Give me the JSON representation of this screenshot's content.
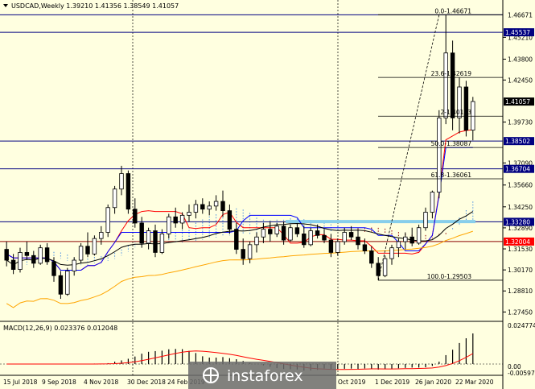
{
  "header": {
    "dropdown_icon": "triangle-down-icon",
    "text": "USDCAD,Weekly  1.39210 1.41356 1.38549 1.41057"
  },
  "macd_label": "MACD(12,26,9) 0.023376 0.012048",
  "watermark": {
    "text": "instaforex",
    "icon": "instaforex-logo-icon"
  },
  "colors": {
    "bull": "#ffffff",
    "bear": "#000000",
    "tenkan": "#ff0000",
    "kijun": "#0000ff",
    "ma_black": "#000000",
    "ma_orange": "#ffa500",
    "level_line": "#000080",
    "badge": "#000080",
    "badge_red": "#ff0000",
    "cloud_blue": "#4a90e2",
    "cloud_red": "#8b0000",
    "macd_signal": "#ff0000",
    "macd_bar": "#000000"
  },
  "chart_data": {
    "type": "candlestick",
    "symbol": "USDCAD",
    "timeframe": "Weekly",
    "ylim": [
      1.27,
      1.47
    ],
    "ohlc_last": {
      "open": 1.3921,
      "high": 1.41356,
      "low": 1.38549,
      "close": 1.41057
    },
    "price_ticks": [
      "1.45210",
      "1.43800",
      "1.42450",
      "1.39730",
      "1.37090",
      "1.35660",
      "1.34250",
      "1.32890",
      "1.31530",
      "1.30170",
      "1.28810",
      "1.27450"
    ],
    "price_badges": [
      {
        "value": 1.45537,
        "label": "1.45537",
        "color": "badge"
      },
      {
        "value": 1.41057,
        "label": "1.41057",
        "color": "bear"
      },
      {
        "value": 1.38502,
        "label": "1.38502",
        "color": "badge"
      },
      {
        "value": 1.36704,
        "label": "1.36704",
        "color": "badge"
      },
      {
        "value": 1.3328,
        "label": "1.33280",
        "color": "badge"
      },
      {
        "value": 1.32004,
        "label": "1.32004",
        "color": "badge_red"
      }
    ],
    "top_price_label": "1.46671",
    "fib_labels": [
      {
        "value": 1.46671,
        "text": "0.0-1.46671"
      },
      {
        "value": 1.42619,
        "text": "23.6-1.42619"
      },
      {
        "value": 1.40113,
        "text": "2-1.40113"
      },
      {
        "value": 1.38087,
        "text": "50.0-1.38087"
      },
      {
        "value": 1.36061,
        "text": "61.8-1.36061"
      },
      {
        "value": 1.29503,
        "text": "100.0-1.29503"
      }
    ],
    "horizontal_levels": [
      1.46671,
      1.45537,
      1.38502,
      1.36704,
      1.3328,
      1.32004
    ],
    "x_labels": [
      "15 Jul 2018",
      "9 Sep 2018",
      "4 Nov 2018",
      "30 Dec 2018",
      "24 Feb 2019",
      "Oct 2019",
      "1 Dec 2019",
      "26 Jan 2020",
      "22 Mar 2020"
    ],
    "candles": [
      [
        1.315,
        1.32,
        1.304,
        1.308
      ],
      [
        1.308,
        1.312,
        1.299,
        1.302
      ],
      [
        1.302,
        1.316,
        1.3,
        1.313
      ],
      [
        1.313,
        1.32,
        1.308,
        1.311
      ],
      [
        1.311,
        1.314,
        1.303,
        1.306
      ],
      [
        1.306,
        1.318,
        1.305,
        1.316
      ],
      [
        1.316,
        1.319,
        1.305,
        1.307
      ],
      [
        1.307,
        1.31,
        1.294,
        1.298
      ],
      [
        1.298,
        1.301,
        1.283,
        1.286
      ],
      [
        1.286,
        1.303,
        1.285,
        1.301
      ],
      [
        1.301,
        1.31,
        1.298,
        1.308
      ],
      [
        1.308,
        1.319,
        1.306,
        1.317
      ],
      [
        1.317,
        1.326,
        1.31,
        1.312
      ],
      [
        1.312,
        1.324,
        1.311,
        1.322
      ],
      [
        1.322,
        1.33,
        1.318,
        1.326
      ],
      [
        1.326,
        1.344,
        1.323,
        1.342
      ],
      [
        1.342,
        1.356,
        1.338,
        1.354
      ],
      [
        1.354,
        1.369,
        1.35,
        1.364
      ],
      [
        1.364,
        1.366,
        1.338,
        1.341
      ],
      [
        1.341,
        1.348,
        1.329,
        1.332
      ],
      [
        1.332,
        1.336,
        1.316,
        1.319
      ],
      [
        1.319,
        1.329,
        1.315,
        1.327
      ],
      [
        1.327,
        1.331,
        1.31,
        1.313
      ],
      [
        1.313,
        1.328,
        1.312,
        1.325
      ],
      [
        1.325,
        1.338,
        1.322,
        1.336
      ],
      [
        1.336,
        1.342,
        1.329,
        1.332
      ],
      [
        1.332,
        1.339,
        1.328,
        1.337
      ],
      [
        1.337,
        1.344,
        1.333,
        1.339
      ],
      [
        1.339,
        1.347,
        1.335,
        1.344
      ],
      [
        1.344,
        1.348,
        1.338,
        1.341
      ],
      [
        1.341,
        1.346,
        1.337,
        1.343
      ],
      [
        1.343,
        1.35,
        1.34,
        1.346
      ],
      [
        1.346,
        1.353,
        1.336,
        1.34
      ],
      [
        1.34,
        1.344,
        1.325,
        1.328
      ],
      [
        1.328,
        1.332,
        1.312,
        1.315
      ],
      [
        1.315,
        1.322,
        1.305,
        1.309
      ],
      [
        1.309,
        1.32,
        1.306,
        1.318
      ],
      [
        1.318,
        1.326,
        1.313,
        1.323
      ],
      [
        1.323,
        1.332,
        1.319,
        1.328
      ],
      [
        1.328,
        1.333,
        1.32,
        1.325
      ],
      [
        1.325,
        1.332,
        1.323,
        1.33
      ],
      [
        1.33,
        1.333,
        1.318,
        1.321
      ],
      [
        1.321,
        1.331,
        1.32,
        1.329
      ],
      [
        1.329,
        1.332,
        1.323,
        1.325
      ],
      [
        1.325,
        1.33,
        1.316,
        1.318
      ],
      [
        1.318,
        1.329,
        1.317,
        1.327
      ],
      [
        1.327,
        1.331,
        1.322,
        1.324
      ],
      [
        1.324,
        1.328,
        1.319,
        1.321
      ],
      [
        1.321,
        1.325,
        1.31,
        1.313
      ],
      [
        1.313,
        1.322,
        1.311,
        1.32
      ],
      [
        1.32,
        1.329,
        1.318,
        1.326
      ],
      [
        1.326,
        1.33,
        1.321,
        1.323
      ],
      [
        1.323,
        1.328,
        1.315,
        1.318
      ],
      [
        1.318,
        1.322,
        1.312,
        1.314
      ],
      [
        1.314,
        1.317,
        1.303,
        1.306
      ],
      [
        1.306,
        1.31,
        1.295,
        1.298
      ],
      [
        1.298,
        1.311,
        1.297,
        1.309
      ],
      [
        1.309,
        1.318,
        1.305,
        1.316
      ],
      [
        1.316,
        1.322,
        1.31,
        1.32
      ],
      [
        1.32,
        1.326,
        1.315,
        1.323
      ],
      [
        1.323,
        1.329,
        1.317,
        1.319
      ],
      [
        1.319,
        1.331,
        1.318,
        1.329
      ],
      [
        1.329,
        1.342,
        1.327,
        1.339
      ],
      [
        1.339,
        1.353,
        1.335,
        1.352
      ],
      [
        1.352,
        1.405,
        1.348,
        1.4
      ],
      [
        1.4,
        1.4667,
        1.396,
        1.442
      ],
      [
        1.442,
        1.45,
        1.392,
        1.4
      ],
      [
        1.4,
        1.426,
        1.39,
        1.42
      ],
      [
        1.42,
        1.424,
        1.388,
        1.3921
      ],
      [
        1.3921,
        1.4136,
        1.3855,
        1.4106
      ]
    ]
  }
}
